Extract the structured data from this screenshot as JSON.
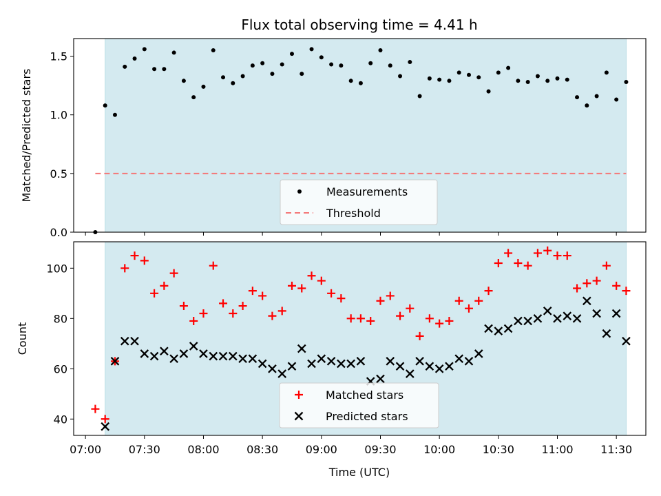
{
  "chart_data": {
    "title": "Flux total observing time = 4.41 h",
    "xlabel": "Time (UTC)",
    "x_tick_labels": [
      "07:00",
      "07:30",
      "08:00",
      "08:30",
      "09:00",
      "09:30",
      "10:00",
      "10:30",
      "11:00",
      "11:30"
    ],
    "xlim": [
      "06:54",
      "11:45"
    ],
    "shaded_span": [
      "07:10",
      "11:35"
    ],
    "shade_color": "#d4eaf0",
    "panels": [
      {
        "type": "scatter",
        "ylabel": "Matched/Predicted stars",
        "ylim": [
          0,
          1.65
        ],
        "y_ticks": [
          "0.0",
          "0.5",
          "1.0",
          "1.5"
        ],
        "series": [
          {
            "name": "Measurements",
            "marker": "dot",
            "color": "#000000",
            "points": [
              [
                "07:05",
                0.0
              ],
              [
                "07:10",
                1.08
              ],
              [
                "07:15",
                1.0
              ],
              [
                "07:20",
                1.41
              ],
              [
                "07:25",
                1.48
              ],
              [
                "07:30",
                1.56
              ],
              [
                "07:35",
                1.39
              ],
              [
                "07:40",
                1.39
              ],
              [
                "07:45",
                1.53
              ],
              [
                "07:50",
                1.29
              ],
              [
                "07:55",
                1.15
              ],
              [
                "08:00",
                1.24
              ],
              [
                "08:05",
                1.55
              ],
              [
                "08:10",
                1.32
              ],
              [
                "08:15",
                1.27
              ],
              [
                "08:20",
                1.33
              ],
              [
                "08:25",
                1.42
              ],
              [
                "08:30",
                1.44
              ],
              [
                "08:35",
                1.35
              ],
              [
                "08:40",
                1.43
              ],
              [
                "08:45",
                1.52
              ],
              [
                "08:50",
                1.35
              ],
              [
                "08:55",
                1.56
              ],
              [
                "09:00",
                1.49
              ],
              [
                "09:05",
                1.43
              ],
              [
                "09:10",
                1.42
              ],
              [
                "09:15",
                1.29
              ],
              [
                "09:20",
                1.27
              ],
              [
                "09:25",
                1.44
              ],
              [
                "09:30",
                1.55
              ],
              [
                "09:35",
                1.42
              ],
              [
                "09:40",
                1.33
              ],
              [
                "09:45",
                1.45
              ],
              [
                "09:50",
                1.16
              ],
              [
                "09:55",
                1.31
              ],
              [
                "10:00",
                1.3
              ],
              [
                "10:05",
                1.29
              ],
              [
                "10:10",
                1.36
              ],
              [
                "10:15",
                1.34
              ],
              [
                "10:20",
                1.32
              ],
              [
                "10:25",
                1.2
              ],
              [
                "10:30",
                1.36
              ],
              [
                "10:35",
                1.4
              ],
              [
                "10:40",
                1.29
              ],
              [
                "10:45",
                1.28
              ],
              [
                "10:50",
                1.33
              ],
              [
                "10:55",
                1.29
              ],
              [
                "11:00",
                1.31
              ],
              [
                "11:05",
                1.3
              ],
              [
                "11:10",
                1.15
              ],
              [
                "11:15",
                1.08
              ],
              [
                "11:20",
                1.16
              ],
              [
                "11:25",
                1.36
              ],
              [
                "11:30",
                1.13
              ],
              [
                "11:35",
                1.28
              ]
            ]
          },
          {
            "name": "Threshold",
            "marker": "dashed-line",
            "color": "#f47777",
            "points": [
              [
                "07:05",
                0.5
              ],
              [
                "11:35",
                0.5
              ]
            ]
          }
        ],
        "legend": "bottom-center"
      },
      {
        "type": "scatter",
        "ylabel": "Count",
        "ylim": [
          33.5,
          110.5
        ],
        "y_ticks": [
          "40",
          "60",
          "80",
          "100"
        ],
        "series": [
          {
            "name": "Matched stars",
            "marker": "plus",
            "color": "#ff0000",
            "points": [
              [
                "07:05",
                44
              ],
              [
                "07:10",
                40
              ],
              [
                "07:15",
                63
              ],
              [
                "07:20",
                100
              ],
              [
                "07:25",
                105
              ],
              [
                "07:30",
                103
              ],
              [
                "07:35",
                90
              ],
              [
                "07:40",
                93
              ],
              [
                "07:45",
                98
              ],
              [
                "07:50",
                85
              ],
              [
                "07:55",
                79
              ],
              [
                "08:00",
                82
              ],
              [
                "08:05",
                101
              ],
              [
                "08:10",
                86
              ],
              [
                "08:15",
                82
              ],
              [
                "08:20",
                85
              ],
              [
                "08:25",
                91
              ],
              [
                "08:30",
                89
              ],
              [
                "08:35",
                81
              ],
              [
                "08:40",
                83
              ],
              [
                "08:45",
                93
              ],
              [
                "08:50",
                92
              ],
              [
                "08:55",
                97
              ],
              [
                "09:00",
                95
              ],
              [
                "09:05",
                90
              ],
              [
                "09:10",
                88
              ],
              [
                "09:15",
                80
              ],
              [
                "09:20",
                80
              ],
              [
                "09:25",
                79
              ],
              [
                "09:30",
                87
              ],
              [
                "09:35",
                89
              ],
              [
                "09:40",
                81
              ],
              [
                "09:45",
                84
              ],
              [
                "09:50",
                73
              ],
              [
                "09:55",
                80
              ],
              [
                "10:00",
                78
              ],
              [
                "10:05",
                79
              ],
              [
                "10:10",
                87
              ],
              [
                "10:15",
                84
              ],
              [
                "10:20",
                87
              ],
              [
                "10:25",
                91
              ],
              [
                "10:30",
                102
              ],
              [
                "10:35",
                106
              ],
              [
                "10:40",
                102
              ],
              [
                "10:45",
                101
              ],
              [
                "10:50",
                106
              ],
              [
                "10:55",
                107
              ],
              [
                "11:00",
                105
              ],
              [
                "11:05",
                105
              ],
              [
                "11:10",
                92
              ],
              [
                "11:15",
                94
              ],
              [
                "11:20",
                95
              ],
              [
                "11:25",
                101
              ],
              [
                "11:30",
                93
              ],
              [
                "11:35",
                91
              ]
            ]
          },
          {
            "name": "Predicted stars",
            "marker": "x",
            "color": "#000000",
            "points": [
              [
                "07:10",
                37
              ],
              [
                "07:15",
                63
              ],
              [
                "07:20",
                71
              ],
              [
                "07:25",
                71
              ],
              [
                "07:30",
                66
              ],
              [
                "07:35",
                65
              ],
              [
                "07:40",
                67
              ],
              [
                "07:45",
                64
              ],
              [
                "07:50",
                66
              ],
              [
                "07:55",
                69
              ],
              [
                "08:00",
                66
              ],
              [
                "08:05",
                65
              ],
              [
                "08:10",
                65
              ],
              [
                "08:15",
                65
              ],
              [
                "08:20",
                64
              ],
              [
                "08:25",
                64
              ],
              [
                "08:30",
                62
              ],
              [
                "08:35",
                60
              ],
              [
                "08:40",
                58
              ],
              [
                "08:45",
                61
              ],
              [
                "08:50",
                68
              ],
              [
                "08:55",
                62
              ],
              [
                "09:00",
                64
              ],
              [
                "09:05",
                63
              ],
              [
                "09:10",
                62
              ],
              [
                "09:15",
                62
              ],
              [
                "09:20",
                63
              ],
              [
                "09:25",
                55
              ],
              [
                "09:30",
                56
              ],
              [
                "09:35",
                63
              ],
              [
                "09:40",
                61
              ],
              [
                "09:45",
                58
              ],
              [
                "09:50",
                63
              ],
              [
                "09:55",
                61
              ],
              [
                "10:00",
                60
              ],
              [
                "10:05",
                61
              ],
              [
                "10:10",
                64
              ],
              [
                "10:15",
                63
              ],
              [
                "10:20",
                66
              ],
              [
                "10:25",
                76
              ],
              [
                "10:30",
                75
              ],
              [
                "10:35",
                76
              ],
              [
                "10:40",
                79
              ],
              [
                "10:45",
                79
              ],
              [
                "10:50",
                80
              ],
              [
                "10:55",
                83
              ],
              [
                "11:00",
                80
              ],
              [
                "11:05",
                81
              ],
              [
                "11:10",
                80
              ],
              [
                "11:15",
                87
              ],
              [
                "11:20",
                82
              ],
              [
                "11:25",
                74
              ],
              [
                "11:30",
                82
              ],
              [
                "11:35",
                71
              ]
            ]
          }
        ],
        "legend": "bottom-center"
      }
    ]
  }
}
